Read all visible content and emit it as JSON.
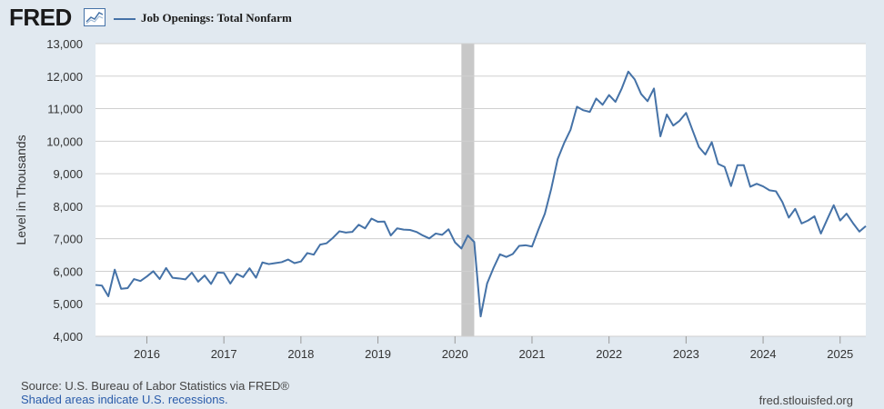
{
  "header": {
    "logo_text": "FRED",
    "logo_icon": "chart-line-icon",
    "legend_label": "Job Openings: Total Nonfarm"
  },
  "chart_data": {
    "type": "line",
    "title": "",
    "ylabel": "Level in Thousands",
    "xlabel": "",
    "ylim": [
      4000,
      13000
    ],
    "xlim": [
      "2015-05",
      "2025-05"
    ],
    "yticks": [
      "4,000",
      "5,000",
      "6,000",
      "7,000",
      "8,000",
      "9,000",
      "10,000",
      "11,000",
      "12,000",
      "13,000"
    ],
    "yticks_values": [
      4000,
      5000,
      6000,
      7000,
      8000,
      9000,
      10000,
      11000,
      12000,
      13000
    ],
    "xticks": [
      "2016",
      "2017",
      "2018",
      "2019",
      "2020",
      "2021",
      "2022",
      "2023",
      "2024",
      "2025"
    ],
    "xticks_values": [
      "2016-01",
      "2017-01",
      "2018-01",
      "2019-01",
      "2020-01",
      "2021-01",
      "2022-01",
      "2023-01",
      "2024-01",
      "2025-01"
    ],
    "grid": true,
    "legend": "top-left",
    "recession": {
      "start": "2020-02",
      "end": "2020-04"
    },
    "series": [
      {
        "name": "Job Openings: Total Nonfarm",
        "color": "#4572a7",
        "x": [
          "2015-05",
          "2015-06",
          "2015-07",
          "2015-08",
          "2015-09",
          "2015-10",
          "2015-11",
          "2015-12",
          "2016-01",
          "2016-02",
          "2016-03",
          "2016-04",
          "2016-05",
          "2016-06",
          "2016-07",
          "2016-08",
          "2016-09",
          "2016-10",
          "2016-11",
          "2016-12",
          "2017-01",
          "2017-02",
          "2017-03",
          "2017-04",
          "2017-05",
          "2017-06",
          "2017-07",
          "2017-08",
          "2017-09",
          "2017-10",
          "2017-11",
          "2017-12",
          "2018-01",
          "2018-02",
          "2018-03",
          "2018-04",
          "2018-05",
          "2018-06",
          "2018-07",
          "2018-08",
          "2018-09",
          "2018-10",
          "2018-11",
          "2018-12",
          "2019-01",
          "2019-02",
          "2019-03",
          "2019-04",
          "2019-05",
          "2019-06",
          "2019-07",
          "2019-08",
          "2019-09",
          "2019-10",
          "2019-11",
          "2019-12",
          "2020-01",
          "2020-02",
          "2020-03",
          "2020-04",
          "2020-05",
          "2020-06",
          "2020-07",
          "2020-08",
          "2020-09",
          "2020-10",
          "2020-11",
          "2020-12",
          "2021-01",
          "2021-02",
          "2021-03",
          "2021-04",
          "2021-05",
          "2021-06",
          "2021-07",
          "2021-08",
          "2021-09",
          "2021-10",
          "2021-11",
          "2021-12",
          "2022-01",
          "2022-02",
          "2022-03",
          "2022-04",
          "2022-05",
          "2022-06",
          "2022-07",
          "2022-08",
          "2022-09",
          "2022-10",
          "2022-11",
          "2022-12",
          "2023-01",
          "2023-02",
          "2023-03",
          "2023-04",
          "2023-05",
          "2023-06",
          "2023-07",
          "2023-08",
          "2023-09",
          "2023-10",
          "2023-11",
          "2023-12",
          "2024-01",
          "2024-02",
          "2024-03",
          "2024-04",
          "2024-05",
          "2024-06",
          "2024-07",
          "2024-08",
          "2024-09",
          "2024-10",
          "2024-11",
          "2024-12",
          "2025-01",
          "2025-02",
          "2025-03",
          "2025-04",
          "2025-05"
        ],
        "values": [
          5580,
          5560,
          5230,
          6050,
          5460,
          5480,
          5760,
          5700,
          5840,
          6000,
          5760,
          6100,
          5800,
          5780,
          5750,
          5960,
          5680,
          5870,
          5610,
          5960,
          5950,
          5620,
          5920,
          5820,
          6090,
          5800,
          6270,
          6220,
          6250,
          6280,
          6360,
          6250,
          6300,
          6560,
          6510,
          6820,
          6860,
          7030,
          7230,
          7190,
          7210,
          7430,
          7320,
          7620,
          7520,
          7530,
          7100,
          7320,
          7280,
          7270,
          7210,
          7100,
          7010,
          7160,
          7120,
          7290,
          6890,
          6700,
          7100,
          6900,
          4610,
          5620,
          6100,
          6520,
          6440,
          6530,
          6780,
          6800,
          6760,
          7280,
          7770,
          8540,
          9450,
          9940,
          10350,
          11060,
          10950,
          10900,
          11310,
          11120,
          11420,
          11210,
          11630,
          12140,
          11900,
          11450,
          11230,
          11620,
          10150,
          10820,
          10480,
          10630,
          10870,
          10340,
          9820,
          9590,
          9970,
          9300,
          9210,
          8620,
          9260,
          9260,
          8600,
          8690,
          8610,
          8490,
          8460,
          8130,
          7650,
          7920,
          7470,
          7560,
          7690,
          7160,
          7600,
          8030,
          7560,
          7770,
          7480,
          7220,
          7390
        ]
      }
    ]
  },
  "footer": {
    "source": "Source: U.S. Bureau of Labor Statistics via FRED®",
    "note": "Shaded areas indicate U.S. recessions.",
    "site": "fred.stlouisfed.org"
  }
}
